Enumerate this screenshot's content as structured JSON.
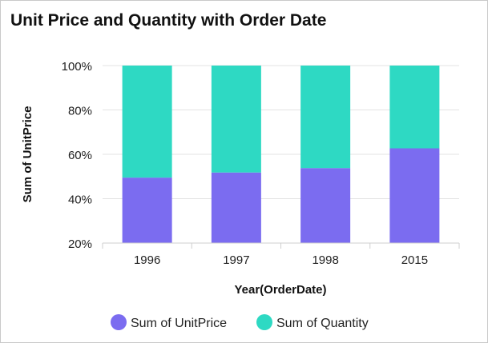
{
  "chart_data": {
    "type": "bar",
    "stacked": "percent",
    "title": "Unit Price and Quantity with Order Date",
    "xlabel": "Year(OrderDate)",
    "ylabel": "Sum of UnitPrice",
    "categories": [
      "1996",
      "1997",
      "1998",
      "2015"
    ],
    "series": [
      {
        "name": "Sum of UnitPrice",
        "color": "#7b6cf0",
        "values": [
          49.5,
          51.8,
          53.8,
          62.7
        ]
      },
      {
        "name": "Sum of Quantity",
        "color": "#2ed9c3",
        "values": [
          50.5,
          48.2,
          46.2,
          37.3
        ]
      }
    ],
    "ylim": [
      20,
      100
    ],
    "yticks": [
      20,
      40,
      60,
      80,
      100
    ],
    "ytick_labels": [
      "20%",
      "40%",
      "60%",
      "80%",
      "100%"
    ],
    "grid": true,
    "legend_position": "bottom"
  }
}
